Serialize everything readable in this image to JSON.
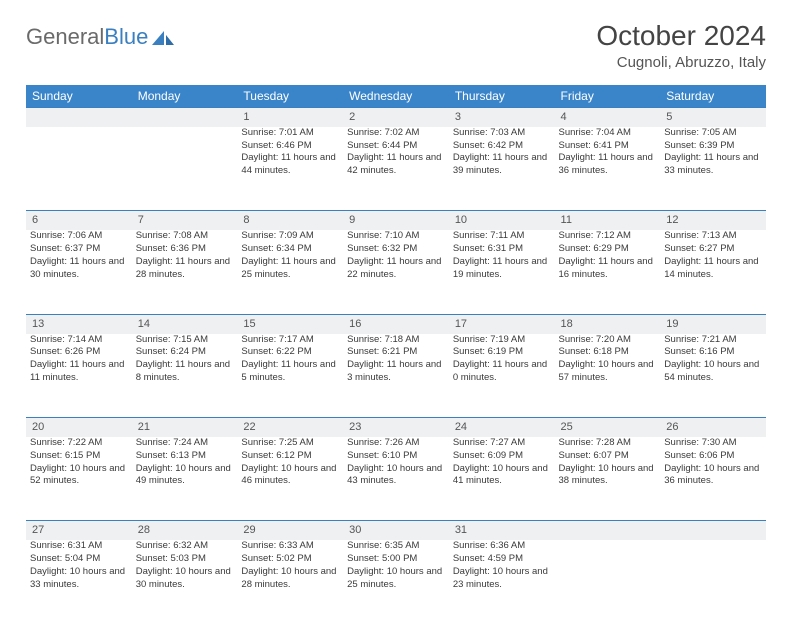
{
  "logo": {
    "text1": "General",
    "text2": "Blue"
  },
  "title": "October 2024",
  "location": "Cugnoli, Abruzzo, Italy",
  "colors": {
    "header_bg": "#3a85c9",
    "header_fg": "#ffffff",
    "daynum_bg": "#eef0f2",
    "daynum_border": "#3a7fbf",
    "text": "#3a3a3a",
    "logo_gray": "#6a6a6a",
    "logo_blue": "#3a7fbf"
  },
  "weekdays": [
    "Sunday",
    "Monday",
    "Tuesday",
    "Wednesday",
    "Thursday",
    "Friday",
    "Saturday"
  ],
  "weeks": [
    {
      "nums": [
        "",
        "",
        "1",
        "2",
        "3",
        "4",
        "5"
      ],
      "cells": [
        null,
        null,
        {
          "sr": "7:01 AM",
          "ss": "6:46 PM",
          "dh": "11",
          "dm": "44"
        },
        {
          "sr": "7:02 AM",
          "ss": "6:44 PM",
          "dh": "11",
          "dm": "42"
        },
        {
          "sr": "7:03 AM",
          "ss": "6:42 PM",
          "dh": "11",
          "dm": "39"
        },
        {
          "sr": "7:04 AM",
          "ss": "6:41 PM",
          "dh": "11",
          "dm": "36"
        },
        {
          "sr": "7:05 AM",
          "ss": "6:39 PM",
          "dh": "11",
          "dm": "33"
        }
      ]
    },
    {
      "nums": [
        "6",
        "7",
        "8",
        "9",
        "10",
        "11",
        "12"
      ],
      "cells": [
        {
          "sr": "7:06 AM",
          "ss": "6:37 PM",
          "dh": "11",
          "dm": "30"
        },
        {
          "sr": "7:08 AM",
          "ss": "6:36 PM",
          "dh": "11",
          "dm": "28"
        },
        {
          "sr": "7:09 AM",
          "ss": "6:34 PM",
          "dh": "11",
          "dm": "25"
        },
        {
          "sr": "7:10 AM",
          "ss": "6:32 PM",
          "dh": "11",
          "dm": "22"
        },
        {
          "sr": "7:11 AM",
          "ss": "6:31 PM",
          "dh": "11",
          "dm": "19"
        },
        {
          "sr": "7:12 AM",
          "ss": "6:29 PM",
          "dh": "11",
          "dm": "16"
        },
        {
          "sr": "7:13 AM",
          "ss": "6:27 PM",
          "dh": "11",
          "dm": "14"
        }
      ]
    },
    {
      "nums": [
        "13",
        "14",
        "15",
        "16",
        "17",
        "18",
        "19"
      ],
      "cells": [
        {
          "sr": "7:14 AM",
          "ss": "6:26 PM",
          "dh": "11",
          "dm": "11"
        },
        {
          "sr": "7:15 AM",
          "ss": "6:24 PM",
          "dh": "11",
          "dm": "8"
        },
        {
          "sr": "7:17 AM",
          "ss": "6:22 PM",
          "dh": "11",
          "dm": "5"
        },
        {
          "sr": "7:18 AM",
          "ss": "6:21 PM",
          "dh": "11",
          "dm": "3"
        },
        {
          "sr": "7:19 AM",
          "ss": "6:19 PM",
          "dh": "11",
          "dm": "0"
        },
        {
          "sr": "7:20 AM",
          "ss": "6:18 PM",
          "dh": "10",
          "dm": "57"
        },
        {
          "sr": "7:21 AM",
          "ss": "6:16 PM",
          "dh": "10",
          "dm": "54"
        }
      ]
    },
    {
      "nums": [
        "20",
        "21",
        "22",
        "23",
        "24",
        "25",
        "26"
      ],
      "cells": [
        {
          "sr": "7:22 AM",
          "ss": "6:15 PM",
          "dh": "10",
          "dm": "52"
        },
        {
          "sr": "7:24 AM",
          "ss": "6:13 PM",
          "dh": "10",
          "dm": "49"
        },
        {
          "sr": "7:25 AM",
          "ss": "6:12 PM",
          "dh": "10",
          "dm": "46"
        },
        {
          "sr": "7:26 AM",
          "ss": "6:10 PM",
          "dh": "10",
          "dm": "43"
        },
        {
          "sr": "7:27 AM",
          "ss": "6:09 PM",
          "dh": "10",
          "dm": "41"
        },
        {
          "sr": "7:28 AM",
          "ss": "6:07 PM",
          "dh": "10",
          "dm": "38"
        },
        {
          "sr": "7:30 AM",
          "ss": "6:06 PM",
          "dh": "10",
          "dm": "36"
        }
      ]
    },
    {
      "nums": [
        "27",
        "28",
        "29",
        "30",
        "31",
        "",
        ""
      ],
      "cells": [
        {
          "sr": "6:31 AM",
          "ss": "5:04 PM",
          "dh": "10",
          "dm": "33"
        },
        {
          "sr": "6:32 AM",
          "ss": "5:03 PM",
          "dh": "10",
          "dm": "30"
        },
        {
          "sr": "6:33 AM",
          "ss": "5:02 PM",
          "dh": "10",
          "dm": "28"
        },
        {
          "sr": "6:35 AM",
          "ss": "5:00 PM",
          "dh": "10",
          "dm": "25"
        },
        {
          "sr": "6:36 AM",
          "ss": "4:59 PM",
          "dh": "10",
          "dm": "23"
        },
        null,
        null
      ]
    }
  ],
  "labels": {
    "sunrise": "Sunrise:",
    "sunset": "Sunset:",
    "daylight": "Daylight:",
    "hours": "hours",
    "and": "and",
    "minutes": "minutes."
  }
}
